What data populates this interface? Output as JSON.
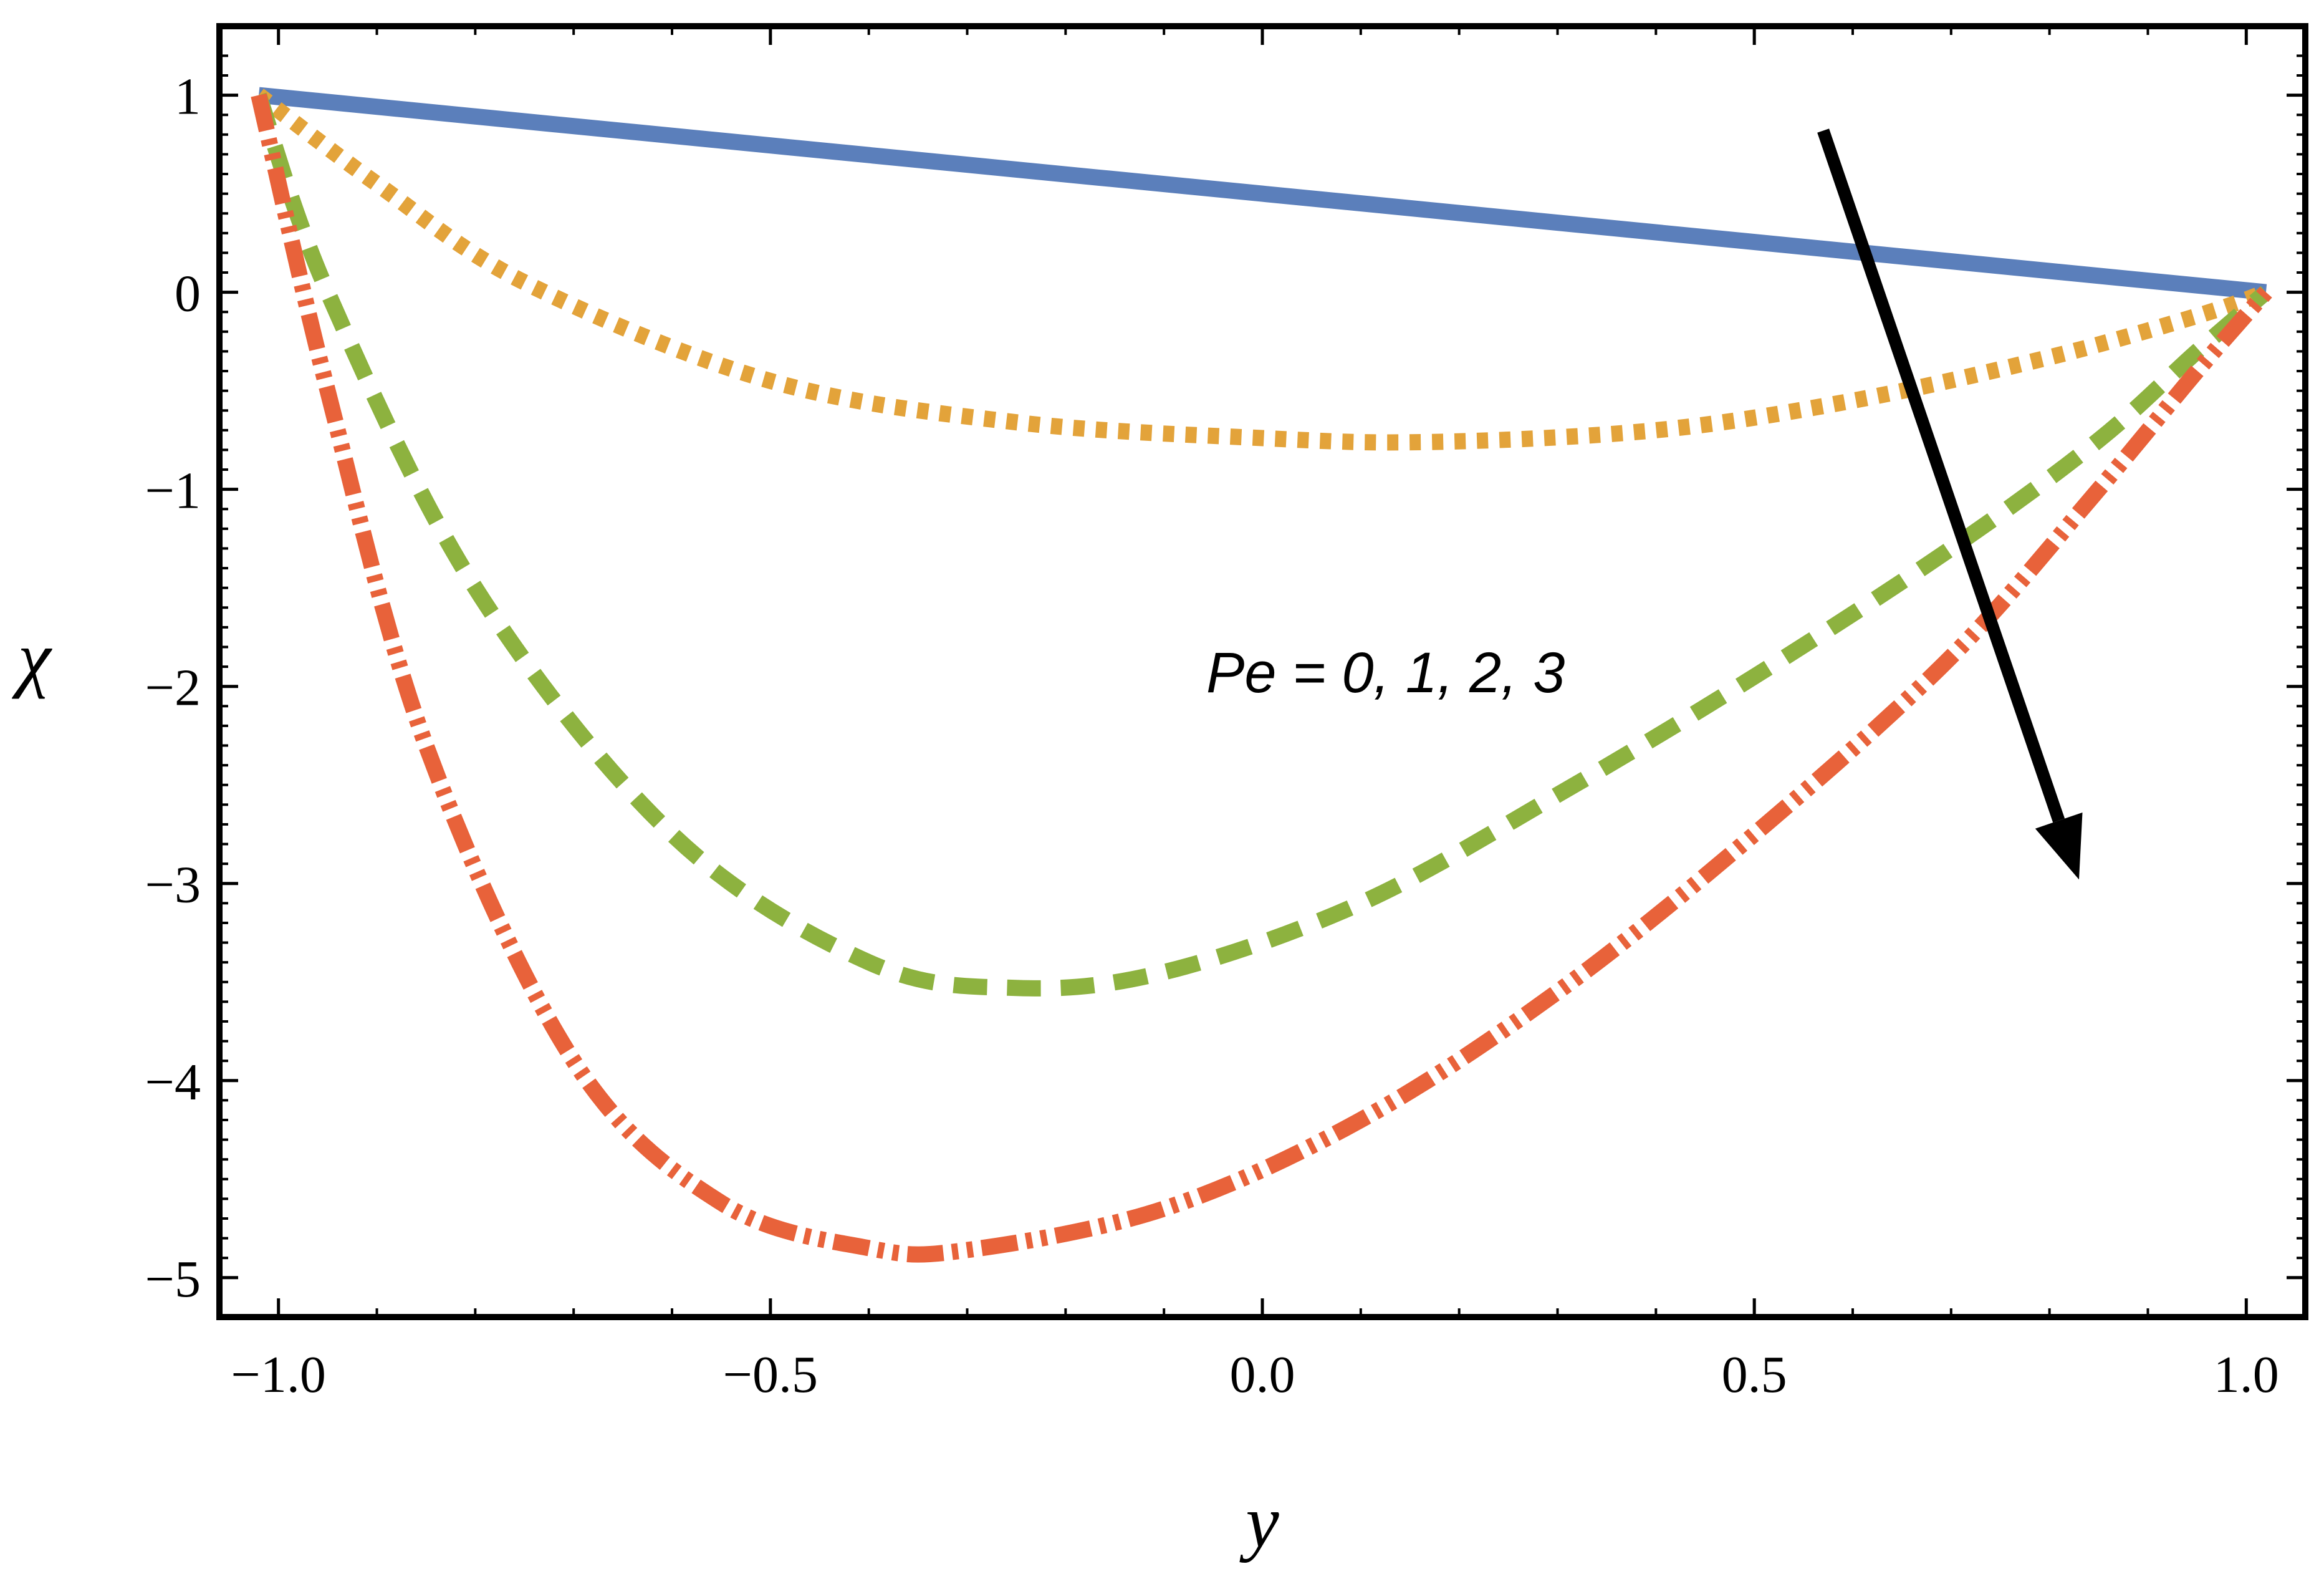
{
  "chart_data": {
    "type": "line",
    "title": "",
    "xlabel": "y",
    "ylabel": "χ",
    "xlim": [
      -1.06,
      1.06
    ],
    "ylim": [
      -5.2,
      1.35
    ],
    "x_ticks": [
      {
        "value": -1.0,
        "label": "−1.0"
      },
      {
        "value": -0.5,
        "label": "−0.5"
      },
      {
        "value": 0.0,
        "label": "0.0"
      },
      {
        "value": 0.5,
        "label": "0.5"
      },
      {
        "value": 1.0,
        "label": "1.0"
      }
    ],
    "y_ticks": [
      {
        "value": 1,
        "label": "1"
      },
      {
        "value": 0,
        "label": "0"
      },
      {
        "value": -1,
        "label": "−1"
      },
      {
        "value": -2,
        "label": "−2"
      },
      {
        "value": -3,
        "label": "−3"
      },
      {
        "value": -4,
        "label": "−4"
      },
      {
        "value": -5,
        "label": "−5"
      }
    ],
    "annotation": "Pe = 0, 1, 2, 3",
    "arrow": {
      "from": [
        0.57,
        0.82
      ],
      "to": [
        0.83,
        -2.98
      ]
    },
    "series": [
      {
        "name": "Pe = 0",
        "color": "#5b7fbb",
        "style": "solid",
        "x": [
          -1.02,
          -0.5,
          0.0,
          0.5,
          1.02
        ],
        "y": [
          1.0,
          0.745,
          0.5,
          0.255,
          0.0
        ]
      },
      {
        "name": "Pe = 1",
        "color": "#e3a33a",
        "style": "dotted",
        "x": [
          -1.02,
          -0.9,
          -0.75,
          -0.5,
          -0.25,
          0.0,
          0.17,
          0.4,
          0.6,
          0.8,
          0.95,
          1.02
        ],
        "y": [
          1.0,
          0.55,
          0.05,
          -0.45,
          -0.66,
          -0.74,
          -0.76,
          -0.7,
          -0.55,
          -0.33,
          -0.12,
          0.0
        ]
      },
      {
        "name": "Pe = 2",
        "color": "#8db23f",
        "style": "dashed",
        "x": [
          -1.02,
          -0.95,
          -0.8,
          -0.6,
          -0.4,
          -0.25,
          -0.1,
          0.1,
          0.3,
          0.5,
          0.7,
          0.85,
          0.95,
          1.02
        ],
        "y": [
          1.0,
          0.0,
          -1.5,
          -2.75,
          -3.4,
          -3.53,
          -3.45,
          -3.1,
          -2.55,
          -1.95,
          -1.3,
          -0.75,
          -0.3,
          0.0
        ]
      },
      {
        "name": "Pe = 3",
        "color": "#e8623a",
        "style": "dashdotdot",
        "x": [
          -1.02,
          -0.95,
          -0.85,
          -0.7,
          -0.55,
          -0.4,
          -0.3,
          -0.1,
          0.1,
          0.3,
          0.5,
          0.7,
          0.85,
          0.95,
          1.02
        ],
        "y": [
          1.0,
          -0.5,
          -2.3,
          -3.9,
          -4.62,
          -4.85,
          -4.86,
          -4.65,
          -4.2,
          -3.55,
          -2.75,
          -1.85,
          -1.0,
          -0.4,
          0.0
        ]
      }
    ]
  }
}
